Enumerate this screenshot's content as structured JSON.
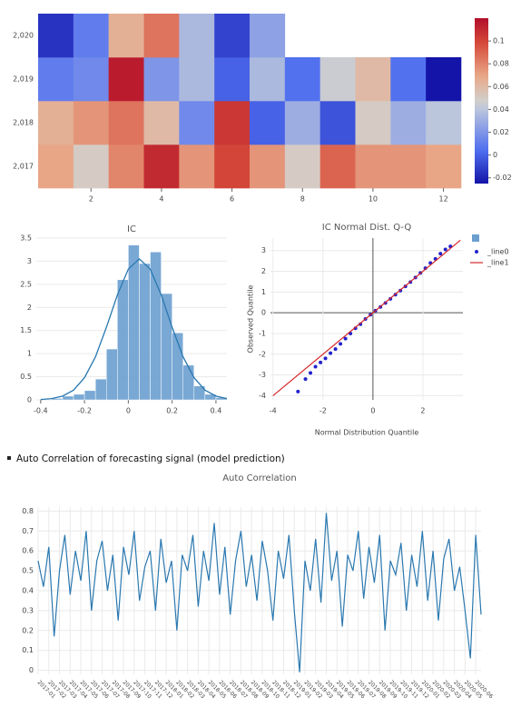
{
  "section_heading": "Auto Correlation of forecasting signal (model prediction)",
  "chart_data": [
    {
      "type": "heatmap",
      "x": [
        1,
        2,
        3,
        4,
        5,
        6,
        7,
        8,
        9,
        10,
        11,
        12
      ],
      "y": [
        "2,017",
        "2,018",
        "2,019",
        "2,020"
      ],
      "z": [
        [
          0.07,
          0.05,
          0.08,
          0.11,
          0.075,
          0.1,
          0.075,
          0.05,
          0.09,
          0.075,
          0.075,
          0.07
        ],
        [
          0.065,
          0.075,
          0.085,
          0.06,
          0.015,
          0.105,
          0.0,
          0.03,
          -0.005,
          0.05,
          0.03,
          0.04
        ],
        [
          0.01,
          0.015,
          0.115,
          0.02,
          0.035,
          0.0,
          0.035,
          0.005,
          0.045,
          0.06,
          0.005,
          -0.025
        ],
        [
          -0.015,
          0.01,
          0.065,
          0.085,
          0.035,
          -0.01,
          0.025,
          null,
          null,
          null,
          null,
          null
        ]
      ],
      "xlim": [
        0.5,
        12.5
      ],
      "xticks": [
        2,
        4,
        6,
        8,
        10,
        12
      ],
      "zlim": [
        -0.025,
        0.12
      ],
      "zticks": [
        -0.02,
        0,
        0.02,
        0.04,
        0.06,
        0.08,
        0.1
      ],
      "colorscale": [
        [
          0,
          "#1414a8"
        ],
        [
          0.2,
          "#4f6ff0"
        ],
        [
          0.45,
          "#bcc6dc"
        ],
        [
          0.5,
          "#d2cfcc"
        ],
        [
          0.65,
          "#e8a888"
        ],
        [
          0.85,
          "#d6493a"
        ],
        [
          1,
          "#b10f2a"
        ]
      ]
    },
    {
      "type": "histogram",
      "title": "IC",
      "bins": [
        -0.35,
        -0.3,
        -0.25,
        -0.2,
        -0.15,
        -0.1,
        -0.05,
        0,
        0.05,
        0.1,
        0.15,
        0.2,
        0.25,
        0.3,
        0.35,
        0.4,
        0.45
      ],
      "values": [
        0.03,
        0.08,
        0.12,
        0.2,
        0.45,
        1.1,
        2.6,
        3.35,
        2.95,
        3.2,
        2.3,
        1.45,
        0.75,
        0.3,
        0.12,
        0.05
      ],
      "color": "#6a9fcf",
      "kde": {
        "x": [
          -0.4,
          -0.35,
          -0.3,
          -0.25,
          -0.2,
          -0.15,
          -0.1,
          -0.05,
          0,
          0.05,
          0.1,
          0.15,
          0.2,
          0.25,
          0.3,
          0.35,
          0.4,
          0.45
        ],
        "values": [
          0.008,
          0.027,
          0.082,
          0.21,
          0.48,
          0.93,
          1.57,
          2.27,
          2.83,
          3.05,
          2.83,
          2.27,
          1.57,
          0.93,
          0.48,
          0.21,
          0.082,
          0.027
        ],
        "color": "#2a78b0"
      },
      "xlim": [
        -0.42,
        0.45
      ],
      "xticks": [
        -0.4,
        -0.2,
        0,
        0.2,
        0.4
      ],
      "ylim": [
        0,
        3.5
      ],
      "yticks": [
        0,
        0.5,
        1,
        1.5,
        2,
        2.5,
        3,
        3.5
      ],
      "grid": true
    },
    {
      "type": "scatter",
      "title": "IC Normal Dist. Q-Q",
      "xlabel": "Normal Distribution Quantile",
      "ylabel": "Observed Quantile",
      "series": [
        {
          "name": "_line0",
          "color": "#2222cc",
          "mode": "markers",
          "x": [
            -3.0,
            -2.7,
            -2.5,
            -2.3,
            -2.1,
            -1.9,
            -1.7,
            -1.5,
            -1.3,
            -1.1,
            -0.9,
            -0.7,
            -0.5,
            -0.3,
            -0.1,
            0.1,
            0.3,
            0.5,
            0.7,
            0.9,
            1.1,
            1.3,
            1.5,
            1.7,
            1.9,
            2.1,
            2.3,
            2.5,
            2.7,
            2.9,
            3.1
          ],
          "values": [
            -3.8,
            -3.2,
            -2.9,
            -2.6,
            -2.4,
            -2.2,
            -1.95,
            -1.75,
            -1.5,
            -1.25,
            -1.0,
            -0.75,
            -0.55,
            -0.3,
            -0.1,
            0.1,
            0.28,
            0.47,
            0.67,
            0.87,
            1.07,
            1.27,
            1.48,
            1.7,
            1.92,
            2.15,
            2.4,
            2.6,
            2.85,
            3.05,
            3.2
          ]
        },
        {
          "name": "_line1",
          "color": "#d62728",
          "mode": "lines",
          "x": [
            -4,
            3.5
          ],
          "values": [
            -4,
            3.5
          ]
        }
      ],
      "xlim": [
        -4.1,
        3.6
      ],
      "xticks": [
        -4,
        -2,
        0,
        2
      ],
      "ylim": [
        -4.2,
        3.6
      ],
      "yticks": [
        -4,
        -3,
        -2,
        -1,
        0,
        1,
        2,
        3
      ],
      "grid": true,
      "zeroline": true,
      "legend": "outside-right"
    },
    {
      "type": "line",
      "title": "Auto Correlation",
      "color": "#2a78b0",
      "values": [
        0.55,
        0.42,
        0.62,
        0.17,
        0.5,
        0.68,
        0.38,
        0.6,
        0.45,
        0.7,
        0.3,
        0.55,
        0.65,
        0.4,
        0.58,
        0.25,
        0.62,
        0.48,
        0.7,
        0.35,
        0.52,
        0.6,
        0.3,
        0.66,
        0.44,
        0.55,
        0.2,
        0.58,
        0.5,
        0.68,
        0.32,
        0.6,
        0.45,
        0.74,
        0.38,
        0.62,
        0.28,
        0.55,
        0.7,
        0.42,
        0.58,
        0.35,
        0.65,
        0.5,
        0.25,
        0.6,
        0.46,
        0.68,
        0.3,
        -0.01,
        0.55,
        0.4,
        0.66,
        0.34,
        0.79,
        0.45,
        0.6,
        0.22,
        0.58,
        0.5,
        0.7,
        0.36,
        0.62,
        0.44,
        0.68,
        0.2,
        0.55,
        0.48,
        0.64,
        0.3,
        0.58,
        0.42,
        0.7,
        0.35,
        0.6,
        0.25,
        0.56,
        0.66,
        0.4,
        0.52,
        0.3,
        0.06,
        0.68,
        0.28
      ],
      "xlim": [
        0,
        83
      ],
      "xticks": [
        {
          "value": 0,
          "label": "2017-01"
        },
        {
          "value": 2,
          "label": "2017-02"
        },
        {
          "value": 4,
          "label": "2017-03"
        },
        {
          "value": 6,
          "label": "2017-04"
        },
        {
          "value": 8,
          "label": "2017-05"
        },
        {
          "value": 10,
          "label": "2017-06"
        },
        {
          "value": 12,
          "label": "2017-07"
        },
        {
          "value": 14,
          "label": "2017-08"
        },
        {
          "value": 16,
          "label": "2017-09"
        },
        {
          "value": 18,
          "label": "2017-10"
        },
        {
          "value": 20,
          "label": "2017-11"
        },
        {
          "value": 22,
          "label": "2017-12"
        },
        {
          "value": 24,
          "label": "2018-01"
        },
        {
          "value": 26,
          "label": "2018-02"
        },
        {
          "value": 28,
          "label": "2018-03"
        },
        {
          "value": 30,
          "label": "2018-04"
        },
        {
          "value": 32,
          "label": "2018-05"
        },
        {
          "value": 34,
          "label": "2018-06"
        },
        {
          "value": 36,
          "label": "2018-07"
        },
        {
          "value": 38,
          "label": "2018-08"
        },
        {
          "value": 40,
          "label": "2018-09"
        },
        {
          "value": 42,
          "label": "2018-10"
        },
        {
          "value": 44,
          "label": "2018-11"
        },
        {
          "value": 46,
          "label": "2018-12"
        },
        {
          "value": 48,
          "label": "2019-01"
        },
        {
          "value": 50,
          "label": "2019-02"
        },
        {
          "value": 52,
          "label": "2019-03"
        },
        {
          "value": 54,
          "label": "2019-04"
        },
        {
          "value": 56,
          "label": "2019-05"
        },
        {
          "value": 58,
          "label": "2019-06"
        },
        {
          "value": 60,
          "label": "2019-07"
        },
        {
          "value": 62,
          "label": "2019-08"
        },
        {
          "value": 64,
          "label": "2019-09"
        },
        {
          "value": 66,
          "label": "2019-10"
        },
        {
          "value": 68,
          "label": "2019-11"
        },
        {
          "value": 70,
          "label": "2019-12"
        },
        {
          "value": 72,
          "label": "2020-01"
        },
        {
          "value": 74,
          "label": "2020-02"
        },
        {
          "value": 76,
          "label": "2020-03"
        },
        {
          "value": 78,
          "label": "2020-04"
        },
        {
          "value": 80,
          "label": "2020-05"
        },
        {
          "value": 82,
          "label": "2020-06"
        }
      ],
      "ylim": [
        -0.02,
        0.82
      ],
      "yticks": [
        0,
        0.1,
        0.2,
        0.3,
        0.4,
        0.5,
        0.6,
        0.7,
        0.8
      ],
      "grid": true
    }
  ]
}
